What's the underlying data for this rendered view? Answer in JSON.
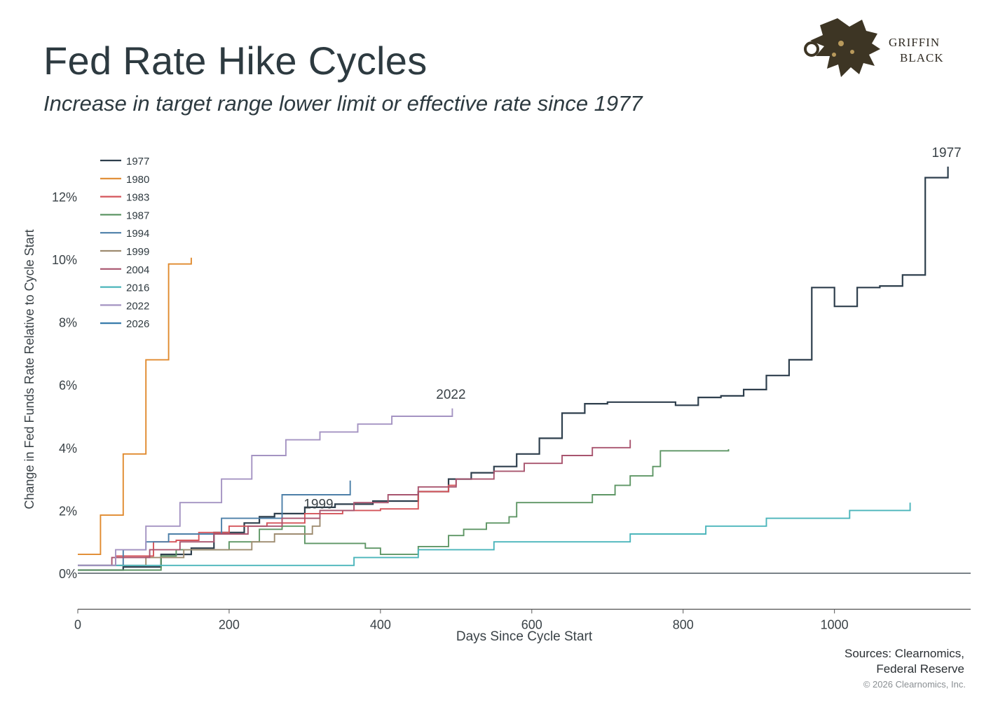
{
  "header": {
    "title": "Fed Rate Hike Cycles",
    "subtitle": "Increase in target range lower limit or effective rate since 1977"
  },
  "logo": {
    "line1": "GRIFFIN",
    "line2": "BLACK",
    "icon": "griffin-icon"
  },
  "footer": {
    "sources_line1": "Sources: Clearnomics,",
    "sources_line2": "Federal Reserve",
    "copyright": "© 2026 Clearnomics, Inc."
  },
  "chart_data": {
    "type": "line",
    "step": true,
    "xlabel": "Days Since Cycle Start",
    "ylabel": "Change in Fed Funds Rate Relative to Cycle Start",
    "xlim": [
      0,
      1180
    ],
    "ylim": [
      -0.7,
      12.8
    ],
    "x_ticks": [
      0,
      200,
      400,
      600,
      800,
      1000
    ],
    "y_ticks": [
      0,
      2,
      4,
      6,
      8,
      10,
      12
    ],
    "y_tick_labels": [
      "0%",
      "2%",
      "4%",
      "6%",
      "8%",
      "10%",
      "12%"
    ],
    "legend_position": "top-left",
    "end_labels": [
      {
        "series": "1977",
        "text": "1977"
      },
      {
        "series": "2022",
        "text": "2022"
      },
      {
        "series": "1999",
        "text": "1999"
      }
    ],
    "series": [
      {
        "name": "1977",
        "color": "#2e3f4d",
        "points": [
          [
            0,
            0.1
          ],
          [
            60,
            0.1
          ],
          [
            60,
            0.2
          ],
          [
            110,
            0.2
          ],
          [
            110,
            0.6
          ],
          [
            150,
            0.6
          ],
          [
            150,
            0.8
          ],
          [
            180,
            0.8
          ],
          [
            180,
            1.3
          ],
          [
            220,
            1.3
          ],
          [
            220,
            1.6
          ],
          [
            240,
            1.6
          ],
          [
            240,
            1.8
          ],
          [
            260,
            1.8
          ],
          [
            260,
            1.9
          ],
          [
            300,
            1.9
          ],
          [
            300,
            2.1
          ],
          [
            340,
            2.1
          ],
          [
            340,
            2.2
          ],
          [
            390,
            2.2
          ],
          [
            390,
            2.3
          ],
          [
            450,
            2.3
          ],
          [
            450,
            2.6
          ],
          [
            490,
            2.6
          ],
          [
            490,
            3.0
          ],
          [
            520,
            3.0
          ],
          [
            520,
            3.2
          ],
          [
            550,
            3.2
          ],
          [
            550,
            3.4
          ],
          [
            580,
            3.4
          ],
          [
            580,
            3.8
          ],
          [
            610,
            3.8
          ],
          [
            610,
            4.3
          ],
          [
            640,
            4.3
          ],
          [
            640,
            5.1
          ],
          [
            670,
            5.1
          ],
          [
            670,
            5.4
          ],
          [
            700,
            5.4
          ],
          [
            700,
            5.45
          ],
          [
            790,
            5.45
          ],
          [
            790,
            5.35
          ],
          [
            820,
            5.35
          ],
          [
            820,
            5.6
          ],
          [
            850,
            5.6
          ],
          [
            850,
            5.65
          ],
          [
            880,
            5.65
          ],
          [
            880,
            5.85
          ],
          [
            910,
            5.85
          ],
          [
            910,
            6.3
          ],
          [
            940,
            6.3
          ],
          [
            940,
            6.8
          ],
          [
            970,
            6.8
          ],
          [
            970,
            9.1
          ],
          [
            1000,
            9.1
          ],
          [
            1000,
            8.5
          ],
          [
            1030,
            8.5
          ],
          [
            1030,
            9.1
          ],
          [
            1060,
            9.1
          ],
          [
            1060,
            9.15
          ],
          [
            1090,
            9.15
          ],
          [
            1090,
            9.5
          ],
          [
            1120,
            9.5
          ],
          [
            1120,
            12.6
          ],
          [
            1150,
            12.6
          ],
          [
            1150,
            12.95
          ]
        ]
      },
      {
        "name": "1980",
        "color": "#e08a2e",
        "points": [
          [
            0,
            0.6
          ],
          [
            30,
            0.6
          ],
          [
            30,
            1.85
          ],
          [
            60,
            1.85
          ],
          [
            60,
            3.8
          ],
          [
            90,
            3.8
          ],
          [
            90,
            6.8
          ],
          [
            120,
            6.8
          ],
          [
            120,
            9.85
          ],
          [
            150,
            9.85
          ],
          [
            150,
            10.05
          ]
        ]
      },
      {
        "name": "1983",
        "color": "#d4545a",
        "points": [
          [
            0,
            0.25
          ],
          [
            50,
            0.25
          ],
          [
            50,
            0.55
          ],
          [
            100,
            0.55
          ],
          [
            100,
            1.0
          ],
          [
            130,
            1.0
          ],
          [
            130,
            1.05
          ],
          [
            160,
            1.05
          ],
          [
            160,
            1.3
          ],
          [
            200,
            1.3
          ],
          [
            200,
            1.5
          ],
          [
            250,
            1.5
          ],
          [
            250,
            1.6
          ],
          [
            300,
            1.6
          ],
          [
            300,
            1.9
          ],
          [
            350,
            1.9
          ],
          [
            350,
            2.0
          ],
          [
            400,
            2.0
          ],
          [
            400,
            2.05
          ],
          [
            450,
            2.05
          ],
          [
            450,
            2.6
          ],
          [
            490,
            2.6
          ],
          [
            490,
            2.8
          ],
          [
            500,
            2.8
          ],
          [
            500,
            3.0
          ]
        ]
      },
      {
        "name": "1987",
        "color": "#5e9665",
        "points": [
          [
            0,
            0.1
          ],
          [
            110,
            0.1
          ],
          [
            110,
            0.55
          ],
          [
            130,
            0.55
          ],
          [
            130,
            0.75
          ],
          [
            200,
            0.75
          ],
          [
            200,
            1.0
          ],
          [
            240,
            1.0
          ],
          [
            240,
            1.4
          ],
          [
            270,
            1.4
          ],
          [
            270,
            1.5
          ],
          [
            300,
            1.5
          ],
          [
            300,
            0.95
          ],
          [
            380,
            0.95
          ],
          [
            380,
            0.8
          ],
          [
            400,
            0.8
          ],
          [
            400,
            0.6
          ],
          [
            450,
            0.6
          ],
          [
            450,
            0.85
          ],
          [
            490,
            0.85
          ],
          [
            490,
            1.2
          ],
          [
            510,
            1.2
          ],
          [
            510,
            1.4
          ],
          [
            540,
            1.4
          ],
          [
            540,
            1.6
          ],
          [
            570,
            1.6
          ],
          [
            570,
            1.8
          ],
          [
            580,
            1.8
          ],
          [
            580,
            2.25
          ],
          [
            680,
            2.25
          ],
          [
            680,
            2.5
          ],
          [
            710,
            2.5
          ],
          [
            710,
            2.8
          ],
          [
            730,
            2.8
          ],
          [
            730,
            3.1
          ],
          [
            760,
            3.1
          ],
          [
            760,
            3.4
          ],
          [
            770,
            3.4
          ],
          [
            770,
            3.9
          ],
          [
            860,
            3.9
          ],
          [
            860,
            3.95
          ]
        ]
      },
      {
        "name": "1994",
        "color": "#4c7fa8",
        "points": [
          [
            0,
            0.25
          ],
          [
            60,
            0.25
          ],
          [
            60,
            0.75
          ],
          [
            90,
            0.75
          ],
          [
            90,
            1.0
          ],
          [
            120,
            1.0
          ],
          [
            120,
            1.25
          ],
          [
            190,
            1.25
          ],
          [
            190,
            1.75
          ],
          [
            270,
            1.75
          ],
          [
            270,
            2.5
          ],
          [
            360,
            2.5
          ],
          [
            360,
            2.95
          ]
        ]
      },
      {
        "name": "1999",
        "color": "#9e8c70",
        "points": [
          [
            0,
            0.25
          ],
          [
            90,
            0.25
          ],
          [
            90,
            0.5
          ],
          [
            140,
            0.5
          ],
          [
            140,
            0.75
          ],
          [
            230,
            0.75
          ],
          [
            230,
            1.0
          ],
          [
            260,
            1.0
          ],
          [
            260,
            1.25
          ],
          [
            310,
            1.25
          ],
          [
            310,
            1.5
          ],
          [
            320,
            1.5
          ],
          [
            320,
            1.75
          ]
        ]
      },
      {
        "name": "2004",
        "color": "#a8546e",
        "points": [
          [
            0,
            0.25
          ],
          [
            45,
            0.25
          ],
          [
            45,
            0.5
          ],
          [
            95,
            0.5
          ],
          [
            95,
            0.75
          ],
          [
            135,
            0.75
          ],
          [
            135,
            1.0
          ],
          [
            180,
            1.0
          ],
          [
            180,
            1.25
          ],
          [
            225,
            1.25
          ],
          [
            225,
            1.5
          ],
          [
            270,
            1.5
          ],
          [
            270,
            1.75
          ],
          [
            320,
            1.75
          ],
          [
            320,
            2.0
          ],
          [
            365,
            2.0
          ],
          [
            365,
            2.25
          ],
          [
            410,
            2.25
          ],
          [
            410,
            2.5
          ],
          [
            450,
            2.5
          ],
          [
            450,
            2.75
          ],
          [
            500,
            2.75
          ],
          [
            500,
            3.0
          ],
          [
            550,
            3.0
          ],
          [
            550,
            3.25
          ],
          [
            590,
            3.25
          ],
          [
            590,
            3.5
          ],
          [
            640,
            3.5
          ],
          [
            640,
            3.75
          ],
          [
            680,
            3.75
          ],
          [
            680,
            4.0
          ],
          [
            730,
            4.0
          ],
          [
            730,
            4.25
          ]
        ]
      },
      {
        "name": "2016",
        "color": "#4bb5bb",
        "points": [
          [
            0,
            0.25
          ],
          [
            365,
            0.25
          ],
          [
            365,
            0.5
          ],
          [
            450,
            0.5
          ],
          [
            450,
            0.75
          ],
          [
            550,
            0.75
          ],
          [
            550,
            1.0
          ],
          [
            730,
            1.0
          ],
          [
            730,
            1.25
          ],
          [
            830,
            1.25
          ],
          [
            830,
            1.5
          ],
          [
            910,
            1.5
          ],
          [
            910,
            1.75
          ],
          [
            1020,
            1.75
          ],
          [
            1020,
            2.0
          ],
          [
            1100,
            2.0
          ],
          [
            1100,
            2.25
          ]
        ]
      },
      {
        "name": "2022",
        "color": "#a493c2",
        "points": [
          [
            0,
            0.25
          ],
          [
            50,
            0.25
          ],
          [
            50,
            0.75
          ],
          [
            90,
            0.75
          ],
          [
            90,
            1.5
          ],
          [
            135,
            1.5
          ],
          [
            135,
            2.25
          ],
          [
            190,
            2.25
          ],
          [
            190,
            3.0
          ],
          [
            230,
            3.0
          ],
          [
            230,
            3.75
          ],
          [
            275,
            3.75
          ],
          [
            275,
            4.25
          ],
          [
            320,
            4.25
          ],
          [
            320,
            4.5
          ],
          [
            370,
            4.5
          ],
          [
            370,
            4.75
          ],
          [
            415,
            4.75
          ],
          [
            415,
            5.0
          ],
          [
            495,
            5.0
          ],
          [
            495,
            5.25
          ]
        ]
      },
      {
        "name": "2026",
        "color": "#2b73a6",
        "points": [
          [
            0,
            0.0
          ],
          [
            1180,
            0.0
          ]
        ]
      }
    ]
  }
}
